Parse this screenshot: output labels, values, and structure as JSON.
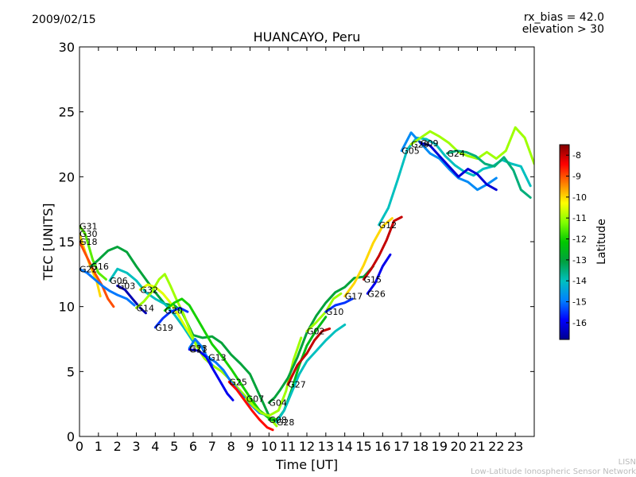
{
  "header": {
    "date": "2009/02/15",
    "note_line1": "rx_bias = 42.0",
    "note_line2": "elevation > 30"
  },
  "footer": {
    "line1": "LISN",
    "line2": "Low-Latitude Ionospheric Sensor Network"
  },
  "colors": {
    "colormap": [
      "#00008f",
      "#0000ff",
      "#0080ff",
      "#00c0c0",
      "#00a040",
      "#00c800",
      "#80ff00",
      "#ffff00",
      "#ff8000",
      "#ff0000",
      "#800000"
    ]
  },
  "chart_data": {
    "type": "line",
    "title": "HUANCAYO, Peru",
    "xlabel": "Time [UT]",
    "ylabel": "TEC [UNITS]",
    "xlim": [
      0,
      24
    ],
    "ylim": [
      0,
      30
    ],
    "xticks": [
      0,
      1,
      2,
      3,
      4,
      5,
      6,
      7,
      8,
      9,
      10,
      11,
      12,
      13,
      14,
      15,
      16,
      17,
      18,
      19,
      20,
      21,
      22,
      23
    ],
    "yticks": [
      0,
      5,
      10,
      15,
      20,
      25,
      30
    ],
    "colorbar": {
      "label": "Latitude",
      "range": [
        -16.8,
        -7.5
      ],
      "ticks": [
        -8,
        -9,
        -10,
        -11,
        -12,
        -13,
        -14,
        -15,
        -16
      ]
    },
    "series": [
      {
        "name": "G31",
        "points": [
          [
            0,
            16.2
          ],
          [
            0.3,
            15.6
          ],
          [
            0.7,
            13.6
          ],
          [
            1.0,
            12.6
          ],
          [
            1.4,
            12.1
          ]
        ],
        "lat": -11.5
      },
      {
        "name": "G30",
        "points": [
          [
            0,
            15.6
          ],
          [
            0.3,
            14.2
          ],
          [
            0.6,
            13.0
          ],
          [
            0.9,
            12.0
          ],
          [
            1.1,
            10.8
          ]
        ],
        "lat": -10.0
      },
      {
        "name": "G18",
        "points": [
          [
            0,
            15.0
          ],
          [
            0.4,
            13.8
          ],
          [
            0.8,
            12.6
          ],
          [
            1.2,
            11.6
          ],
          [
            1.5,
            10.6
          ],
          [
            1.8,
            10.0
          ]
        ],
        "lat": -9.0
      },
      {
        "name": "G16",
        "points": [
          [
            0.6,
            13.1
          ],
          [
            1.0,
            13.6
          ],
          [
            1.5,
            14.3
          ],
          [
            2.0,
            14.6
          ],
          [
            2.5,
            14.2
          ],
          [
            3.0,
            13.1
          ],
          [
            3.5,
            12.1
          ],
          [
            4.0,
            11.1
          ],
          [
            4.5,
            10.2
          ],
          [
            5.0,
            10.1
          ],
          [
            5.4,
            9.6
          ],
          [
            6.0,
            7.8
          ],
          [
            6.5,
            7.6
          ],
          [
            7.0,
            7.7
          ],
          [
            7.5,
            7.2
          ],
          [
            8.0,
            6.3
          ],
          [
            8.5,
            5.6
          ],
          [
            9.0,
            4.8
          ],
          [
            9.5,
            3.2
          ],
          [
            10.0,
            1.6
          ]
        ],
        "lat": -13.0
      },
      {
        "name": "G22",
        "points": [
          [
            0,
            12.9
          ],
          [
            0.4,
            12.6
          ],
          [
            0.8,
            12.1
          ],
          [
            1.2,
            11.6
          ],
          [
            1.6,
            11.2
          ],
          [
            2.0,
            10.9
          ],
          [
            2.5,
            10.6
          ],
          [
            2.9,
            10.1
          ]
        ],
        "lat": -15.0
      },
      {
        "name": "G03",
        "points": [
          [
            2.0,
            11.6
          ],
          [
            2.4,
            11.3
          ],
          [
            2.8,
            10.6
          ],
          [
            3.2,
            9.9
          ],
          [
            3.5,
            9.5
          ]
        ],
        "lat": -16.5
      },
      {
        "name": "G06",
        "points": [
          [
            1.6,
            12.0
          ],
          [
            2.0,
            12.9
          ],
          [
            2.5,
            12.6
          ],
          [
            3.0,
            12.0
          ],
          [
            3.5,
            11.1
          ],
          [
            4.0,
            10.6
          ],
          [
            4.5,
            10.2
          ],
          [
            5.0,
            9.4
          ],
          [
            5.5,
            8.4
          ],
          [
            6.0,
            7.3
          ],
          [
            6.5,
            6.9
          ]
        ],
        "lat": -14.0
      },
      {
        "name": "G32",
        "points": [
          [
            3.2,
            11.3
          ],
          [
            3.6,
            11.7
          ],
          [
            4.0,
            11.5
          ],
          [
            4.4,
            11.0
          ],
          [
            4.8,
            10.3
          ],
          [
            5.2,
            9.4
          ],
          [
            5.6,
            8.4
          ],
          [
            6.0,
            7.5
          ]
        ],
        "lat": -10.5
      },
      {
        "name": "G14",
        "points": [
          [
            3.0,
            9.9
          ],
          [
            3.4,
            10.4
          ],
          [
            3.8,
            11.1
          ],
          [
            4.2,
            12.1
          ],
          [
            4.5,
            12.5
          ],
          [
            4.8,
            11.6
          ],
          [
            5.1,
            10.6
          ],
          [
            5.5,
            9.4
          ],
          [
            5.9,
            7.9
          ],
          [
            6.2,
            6.9
          ],
          [
            6.6,
            6.0
          ],
          [
            7.0,
            5.5
          ],
          [
            7.5,
            5.0
          ],
          [
            8.0,
            4.3
          ],
          [
            8.5,
            3.5
          ],
          [
            9.0,
            2.7
          ],
          [
            9.5,
            2.0
          ],
          [
            10.0,
            1.5
          ],
          [
            10.4,
            0.8
          ]
        ],
        "lat": -11.0
      },
      {
        "name": "G20",
        "points": [
          [
            4.5,
            9.7
          ],
          [
            5.0,
            10.3
          ],
          [
            5.4,
            10.6
          ],
          [
            5.8,
            10.1
          ],
          [
            6.2,
            9.1
          ],
          [
            6.6,
            8.1
          ],
          [
            7.0,
            7.1
          ],
          [
            7.5,
            6.2
          ],
          [
            8.0,
            5.2
          ],
          [
            8.5,
            4.1
          ],
          [
            9.0,
            3.0
          ],
          [
            9.5,
            2.0
          ],
          [
            10.0,
            1.4
          ],
          [
            10.5,
            1.3
          ]
        ],
        "lat": -12.0
      },
      {
        "name": "G19",
        "points": [
          [
            4.0,
            8.4
          ],
          [
            4.4,
            9.1
          ],
          [
            4.8,
            9.6
          ],
          [
            5.3,
            9.9
          ],
          [
            5.7,
            9.6
          ]
        ],
        "lat": -15.5
      },
      {
        "name": "G23",
        "points": [
          [
            5.8,
            6.8
          ],
          [
            6.1,
            7.5
          ],
          [
            6.4,
            7.0
          ],
          [
            6.7,
            6.2
          ],
          [
            7.0,
            5.5
          ]
        ],
        "lat": -15.0
      },
      {
        "name": "G11",
        "points": [
          [
            5.8,
            6.7
          ],
          [
            6.3,
            6.6
          ],
          [
            6.7,
            6.1
          ],
          [
            7.0,
            5.3
          ],
          [
            7.4,
            4.3
          ],
          [
            7.8,
            3.3
          ],
          [
            8.1,
            2.8
          ]
        ],
        "lat": -16.0
      },
      {
        "name": "G13",
        "points": [
          [
            6.8,
            6.1
          ],
          [
            7.2,
            5.7
          ],
          [
            7.6,
            5.1
          ],
          [
            8.0,
            4.2
          ],
          [
            8.5,
            3.3
          ],
          [
            9.0,
            2.5
          ],
          [
            9.5,
            1.8
          ],
          [
            10.0,
            1.6
          ]
        ],
        "lat": -15.0
      },
      {
        "name": "G25",
        "points": [
          [
            7.9,
            4.2
          ],
          [
            8.3,
            3.6
          ],
          [
            8.7,
            2.8
          ],
          [
            9.1,
            2.0
          ],
          [
            9.5,
            1.3
          ],
          [
            9.9,
            0.7
          ],
          [
            10.2,
            0.5
          ]
        ],
        "lat": -8.5
      },
      {
        "name": "G07",
        "points": [
          [
            8.8,
            2.9
          ],
          [
            9.2,
            2.3
          ],
          [
            9.6,
            1.8
          ],
          [
            10.0,
            1.6
          ],
          [
            10.5,
            2.0
          ],
          [
            10.9,
            3.5
          ],
          [
            11.3,
            5.9
          ],
          [
            11.7,
            7.6
          ]
        ],
        "lat": -11.0
      },
      {
        "name": "G04",
        "points": [
          [
            10.0,
            2.6
          ],
          [
            10.3,
            3.0
          ],
          [
            10.6,
            3.6
          ],
          [
            11.0,
            4.5
          ],
          [
            11.5,
            6.1
          ],
          [
            12.0,
            8.0
          ],
          [
            12.5,
            9.3
          ],
          [
            13.0,
            10.3
          ],
          [
            13.5,
            11.1
          ],
          [
            14.0,
            11.5
          ],
          [
            14.5,
            12.2
          ],
          [
            15.0,
            12.3
          ],
          [
            15.5,
            13.1
          ]
        ],
        "lat": -13.0
      },
      {
        "name": "G08",
        "points": [
          [
            10.0,
            1.3
          ],
          [
            10.4,
            1.2
          ],
          [
            10.8,
            2.0
          ],
          [
            11.2,
            3.6
          ],
          [
            11.6,
            5.5
          ],
          [
            12.0,
            7.0
          ],
          [
            12.5,
            8.2
          ],
          [
            13.0,
            9.2
          ]
        ],
        "lat": -12.5
      },
      {
        "name": "G02",
        "points": [
          [
            12.0,
            8.1
          ],
          [
            12.5,
            8.8
          ],
          [
            13.0,
            9.6
          ],
          [
            13.4,
            10.6
          ],
          [
            13.8,
            11.0
          ]
        ],
        "lat": -11.0
      },
      {
        "name": "G27",
        "points": [
          [
            11.0,
            4.0
          ],
          [
            11.5,
            5.5
          ],
          [
            12.0,
            6.4
          ],
          [
            12.4,
            7.4
          ],
          [
            12.8,
            8.1
          ],
          [
            13.2,
            8.3
          ]
        ],
        "lat": -8.0
      },
      {
        "name": "G28",
        "points": [
          [
            10.4,
            1.1
          ],
          [
            10.8,
            2.0
          ],
          [
            11.2,
            3.4
          ],
          [
            11.6,
            4.8
          ],
          [
            12.0,
            5.8
          ],
          [
            12.5,
            6.6
          ],
          [
            13.0,
            7.4
          ],
          [
            13.5,
            8.1
          ],
          [
            14.0,
            8.6
          ]
        ],
        "lat": -14.0
      },
      {
        "name": "G10",
        "points": [
          [
            13.0,
            9.6
          ],
          [
            13.5,
            10.1
          ],
          [
            14.0,
            10.3
          ],
          [
            14.4,
            10.6
          ]
        ],
        "lat": -15.5
      },
      {
        "name": "G17",
        "points": [
          [
            14.0,
            10.8
          ],
          [
            14.5,
            11.8
          ],
          [
            15.0,
            13.2
          ],
          [
            15.5,
            14.9
          ],
          [
            16.0,
            16.2
          ],
          [
            16.5,
            16.8
          ]
        ],
        "lat": -10.0
      },
      {
        "name": "G15",
        "points": [
          [
            15.0,
            12.1
          ],
          [
            15.4,
            12.9
          ],
          [
            15.8,
            13.9
          ],
          [
            16.2,
            15.1
          ],
          [
            16.6,
            16.6
          ],
          [
            17.0,
            16.9
          ]
        ],
        "lat": -8.0
      },
      {
        "name": "G26",
        "points": [
          [
            15.2,
            11.0
          ],
          [
            15.6,
            11.8
          ],
          [
            16.0,
            13.1
          ],
          [
            16.4,
            14.0
          ]
        ],
        "lat": -16.0
      },
      {
        "name": "G12",
        "points": [
          [
            15.8,
            16.3
          ],
          [
            16.3,
            17.6
          ],
          [
            16.8,
            19.8
          ],
          [
            17.3,
            22.1
          ],
          [
            17.8,
            23.0
          ],
          [
            18.3,
            22.9
          ],
          [
            18.8,
            22.5
          ],
          [
            19.3,
            21.6
          ],
          [
            19.8,
            20.9
          ],
          [
            20.3,
            20.4
          ],
          [
            20.8,
            20.1
          ],
          [
            21.3,
            20.6
          ],
          [
            21.8,
            20.8
          ],
          [
            22.3,
            21.3
          ],
          [
            22.8,
            21.0
          ],
          [
            23.3,
            20.8
          ],
          [
            23.8,
            19.3
          ]
        ],
        "lat": -14.0
      },
      {
        "name": "G05",
        "points": [
          [
            17.0,
            22.0
          ],
          [
            17.5,
            23.4
          ],
          [
            18.0,
            22.6
          ],
          [
            18.5,
            21.8
          ],
          [
            19.0,
            21.4
          ],
          [
            19.5,
            20.6
          ],
          [
            20.0,
            19.9
          ],
          [
            20.5,
            19.6
          ],
          [
            21.0,
            19.0
          ],
          [
            21.5,
            19.4
          ],
          [
            22.0,
            19.9
          ]
        ],
        "lat": -14.8
      },
      {
        "name": "G09",
        "points": [
          [
            18.0,
            22.6
          ],
          [
            18.5,
            22.4
          ],
          [
            19.0,
            21.6
          ],
          [
            19.5,
            20.8
          ],
          [
            20.0,
            20.0
          ],
          [
            20.5,
            20.6
          ],
          [
            21.0,
            20.2
          ],
          [
            21.5,
            19.4
          ],
          [
            22.0,
            19.0
          ]
        ],
        "lat": -16.2
      },
      {
        "name": "G29",
        "points": [
          [
            17.5,
            22.5
          ],
          [
            18.0,
            23.0
          ],
          [
            18.5,
            23.5
          ],
          [
            19.0,
            23.1
          ],
          [
            19.5,
            22.6
          ],
          [
            20.0,
            21.9
          ],
          [
            20.5,
            21.6
          ],
          [
            21.0,
            21.4
          ],
          [
            21.5,
            21.9
          ],
          [
            22.0,
            21.4
          ],
          [
            22.5,
            22.0
          ],
          [
            23.0,
            23.8
          ],
          [
            23.5,
            23.0
          ],
          [
            24.0,
            21.0
          ]
        ],
        "lat": -11.0
      },
      {
        "name": "G24",
        "points": [
          [
            19.4,
            21.8
          ],
          [
            19.9,
            22.0
          ],
          [
            20.4,
            21.9
          ],
          [
            20.9,
            21.6
          ],
          [
            21.4,
            21.0
          ],
          [
            21.9,
            20.8
          ],
          [
            22.4,
            21.5
          ],
          [
            22.9,
            20.5
          ],
          [
            23.3,
            19.0
          ],
          [
            23.8,
            18.4
          ]
        ],
        "lat": -13.5
      }
    ]
  }
}
